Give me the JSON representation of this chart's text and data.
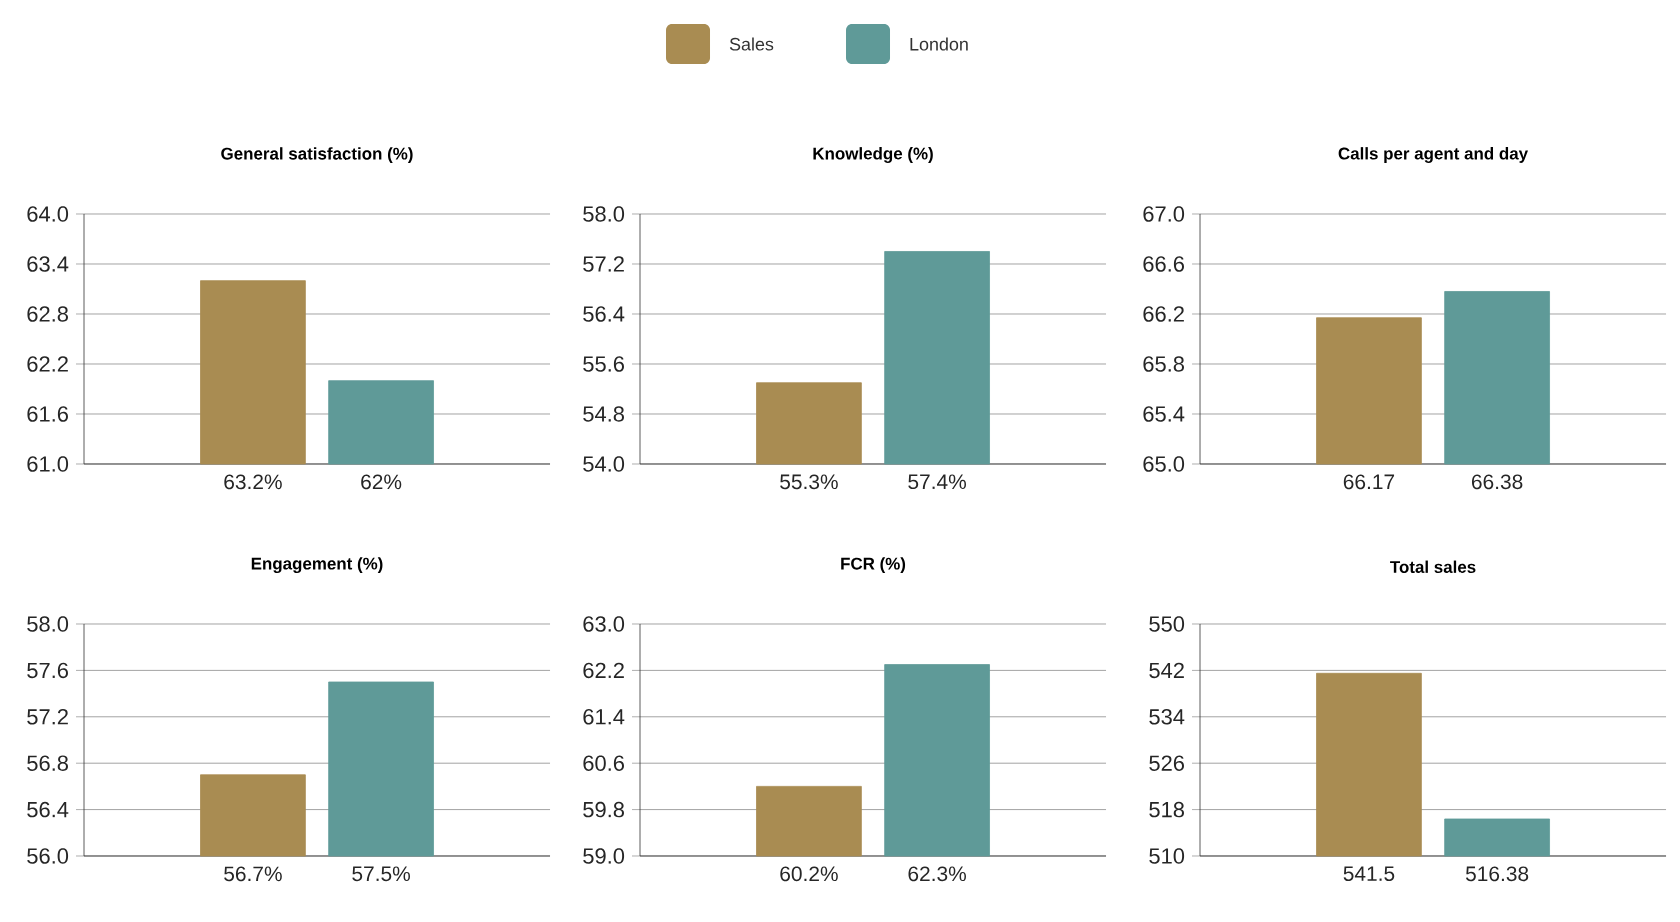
{
  "chart_data": [
    {
      "type": "bar",
      "title": "General satisfaction (%)",
      "categories": [
        null
      ],
      "legend": "top",
      "grid": "y",
      "ylim": [
        61,
        64
      ],
      "yticks": [
        {
          "value": 61,
          "label": "61.0"
        },
        {
          "value": 61.6,
          "label": "61.6"
        },
        {
          "value": 62.2,
          "label": "62.2"
        },
        {
          "value": 62.8,
          "label": "62.8"
        },
        {
          "value": 63.4,
          "label": "63.4"
        },
        {
          "value": 64,
          "label": "64.0"
        }
      ],
      "series": [
        {
          "name": "Sales",
          "color": "#a98c52",
          "values": [
            63.2
          ],
          "value_labels": [
            "63.2%"
          ]
        },
        {
          "name": "London",
          "color": "#5f9a98",
          "values": [
            62
          ],
          "value_labels": [
            "62%"
          ]
        }
      ]
    },
    {
      "type": "bar",
      "title": "Knowledge (%)",
      "categories": [
        null
      ],
      "grid": "y",
      "ylim": [
        54,
        58
      ],
      "yticks": [
        {
          "value": 54,
          "label": "54.0"
        },
        {
          "value": 54.8,
          "label": "54.8"
        },
        {
          "value": 55.6,
          "label": "55.6"
        },
        {
          "value": 56.4,
          "label": "56.4"
        },
        {
          "value": 57.2,
          "label": "57.2"
        },
        {
          "value": 58,
          "label": "58.0"
        }
      ],
      "series": [
        {
          "color": "#a98c52",
          "values": [
            55.3
          ],
          "value_labels": [
            "55.3%"
          ]
        },
        {
          "color": "#5f9a98",
          "values": [
            57.4
          ],
          "value_labels": [
            "57.4%"
          ]
        }
      ]
    },
    {
      "type": "bar",
      "title": "Calls per agent and day",
      "categories": [
        null
      ],
      "grid": "y",
      "ylim": [
        65,
        67
      ],
      "yticks": [
        {
          "value": 65,
          "label": "65.0"
        },
        {
          "value": 65.4,
          "label": "65.4"
        },
        {
          "value": 65.8,
          "label": "65.8"
        },
        {
          "value": 66.2,
          "label": "66.2"
        },
        {
          "value": 66.6,
          "label": "66.6"
        },
        {
          "value": 67,
          "label": "67.0"
        }
      ],
      "series": [
        {
          "color": "#a98c52",
          "values": [
            66.17
          ],
          "value_labels": [
            "66.17"
          ]
        },
        {
          "color": "#5f9a98",
          "values": [
            66.38
          ],
          "value_labels": [
            "66.38"
          ]
        }
      ]
    },
    {
      "type": "bar",
      "title": "Engagement (%)",
      "categories": [
        null
      ],
      "grid": "y",
      "ylim": [
        56,
        58
      ],
      "yticks": [
        {
          "value": 56,
          "label": "56.0"
        },
        {
          "value": 56.4,
          "label": "56.4"
        },
        {
          "value": 56.8,
          "label": "56.8"
        },
        {
          "value": 57.2,
          "label": "57.2"
        },
        {
          "value": 57.6,
          "label": "57.6"
        },
        {
          "value": 58,
          "label": "58.0"
        }
      ],
      "series": [
        {
          "color": "#a98c52",
          "values": [
            56.7
          ],
          "value_labels": [
            "56.7%"
          ]
        },
        {
          "color": "#5f9a98",
          "values": [
            57.5
          ],
          "value_labels": [
            "57.5%"
          ]
        }
      ]
    },
    {
      "type": "bar",
      "title": "FCR (%)",
      "categories": [
        null
      ],
      "grid": "y",
      "ylim": [
        59,
        63
      ],
      "yticks": [
        {
          "value": 59,
          "label": "59.0"
        },
        {
          "value": 59.8,
          "label": "59.8"
        },
        {
          "value": 60.6,
          "label": "60.6"
        },
        {
          "value": 61.4,
          "label": "61.4"
        },
        {
          "value": 62.2,
          "label": "62.2"
        },
        {
          "value": 63,
          "label": "63.0"
        }
      ],
      "series": [
        {
          "color": "#a98c52",
          "values": [
            60.2
          ],
          "value_labels": [
            "60.2%"
          ]
        },
        {
          "color": "#5f9a98",
          "values": [
            62.3
          ],
          "value_labels": [
            "62.3%"
          ]
        }
      ]
    },
    {
      "type": "bar",
      "title": "Total sales",
      "categories": [
        null
      ],
      "grid": "y",
      "ylim": [
        510,
        550
      ],
      "yticks": [
        510,
        518,
        526,
        534,
        542,
        550
      ],
      "series": [
        {
          "color": "#a98c52",
          "values": [
            541.5
          ],
          "value_labels": [
            "541.5"
          ]
        },
        {
          "color": "#5f9a98",
          "values": [
            516.38
          ],
          "value_labels": [
            "516.38"
          ]
        }
      ]
    }
  ]
}
